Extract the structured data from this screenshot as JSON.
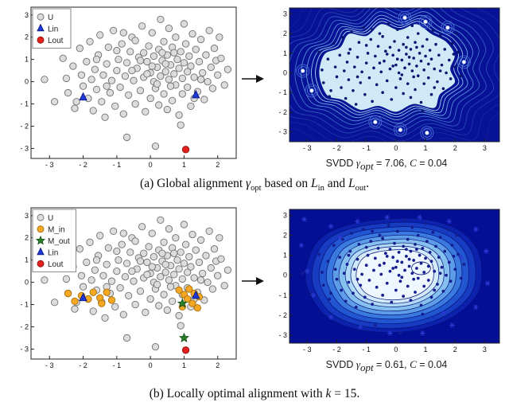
{
  "captions": {
    "svdd_a": {
      "prefix": "SVDD ",
      "gamma": "γ",
      "gsub": "opt",
      "mid": " = 7.06, ",
      "cvar": "C",
      "suffix": " = 0.04"
    },
    "svdd_b": {
      "prefix": "SVDD ",
      "gamma": "γ",
      "gsub": "opt",
      "mid": " = 0.61, ",
      "cvar": "C",
      "suffix": " = 0.04"
    },
    "a": {
      "p1": "(a) Global alignment ",
      "gamma": "γ",
      "gsub": "opt",
      "p2": " based on ",
      "l1": "L",
      "l1s": "in",
      "p3": " and ",
      "l2": "L",
      "l2s": "out",
      "p4": "."
    },
    "b": {
      "p1": "(b) Locally optimal alignment with ",
      "kvar": "k",
      "p2": " = 15."
    }
  },
  "datasets": {
    "U": [
      [
        -3.15,
        0.1
      ],
      [
        -2.85,
        -0.9
      ],
      [
        -2.6,
        1.05
      ],
      [
        -2.5,
        0.15
      ],
      [
        -2.45,
        -0.5
      ],
      [
        -2.3,
        0.7
      ],
      [
        -2.25,
        -1.2
      ],
      [
        -2.1,
        1.5
      ],
      [
        -2.05,
        0.3
      ],
      [
        -2.0,
        -0.2
      ],
      [
        -1.9,
        0.9
      ],
      [
        -1.85,
        -0.75
      ],
      [
        -1.8,
        1.8
      ],
      [
        -1.75,
        0.1
      ],
      [
        -1.7,
        -1.3
      ],
      [
        -1.65,
        0.55
      ],
      [
        -1.6,
        -0.35
      ],
      [
        -1.55,
        1.2
      ],
      [
        -1.5,
        2.1
      ],
      [
        -1.45,
        -0.9
      ],
      [
        -1.4,
        0.3
      ],
      [
        -1.35,
        -1.6
      ],
      [
        -1.3,
        0.8
      ],
      [
        -1.25,
        1.55
      ],
      [
        -1.2,
        -0.5
      ],
      [
        -1.15,
        0.05
      ],
      [
        -1.1,
        2.3
      ],
      [
        -1.05,
        -1.1
      ],
      [
        -1.0,
        0.5
      ],
      [
        -0.95,
        1.0
      ],
      [
        -0.9,
        -0.25
      ],
      [
        -0.85,
        1.7
      ],
      [
        -0.8,
        -1.45
      ],
      [
        -0.75,
        0.25
      ],
      [
        -0.7,
        0.85
      ],
      [
        -0.7,
        -2.5
      ],
      [
        -0.65,
        -0.6
      ],
      [
        -0.6,
        1.35
      ],
      [
        -0.55,
        2.0
      ],
      [
        -0.5,
        0.05
      ],
      [
        -0.45,
        -1.0
      ],
      [
        -0.4,
        0.6
      ],
      [
        -0.35,
        1.1
      ],
      [
        -0.3,
        -0.4
      ],
      [
        -0.25,
        2.5
      ],
      [
        -0.2,
        0.2
      ],
      [
        -0.15,
        -1.35
      ],
      [
        -0.1,
        0.9
      ],
      [
        -0.05,
        1.6
      ],
      [
        0.0,
        0.4
      ],
      [
        0.0,
        -0.75
      ],
      [
        0.05,
        2.2
      ],
      [
        0.1,
        0.0
      ],
      [
        0.1,
        1.15
      ],
      [
        0.15,
        -2.9
      ],
      [
        0.15,
        -0.3
      ],
      [
        0.2,
        0.65
      ],
      [
        0.25,
        1.45
      ],
      [
        0.25,
        -1.05
      ],
      [
        0.3,
        0.25
      ],
      [
        0.3,
        2.8
      ],
      [
        0.35,
        0.95
      ],
      [
        0.4,
        -0.55
      ],
      [
        0.4,
        1.8
      ],
      [
        0.45,
        0.45
      ],
      [
        0.5,
        -1.25
      ],
      [
        0.5,
        1.2
      ],
      [
        0.55,
        0.1
      ],
      [
        0.55,
        2.4
      ],
      [
        0.6,
        0.75
      ],
      [
        0.65,
        -0.85
      ],
      [
        0.65,
        1.55
      ],
      [
        0.7,
        0.35
      ],
      [
        0.75,
        -0.15
      ],
      [
        0.75,
        2.0
      ],
      [
        0.8,
        1.0
      ],
      [
        0.85,
        -1.5
      ],
      [
        0.85,
        0.6
      ],
      [
        0.9,
        1.35
      ],
      [
        0.95,
        0.15
      ],
      [
        0.95,
        -0.55
      ],
      [
        1.0,
        2.6
      ],
      [
        1.0,
        0.85
      ],
      [
        1.05,
        1.7
      ],
      [
        1.1,
        -0.25
      ],
      [
        1.1,
        0.45
      ],
      [
        1.15,
        1.15
      ],
      [
        1.2,
        -1.1
      ],
      [
        1.2,
        0.7
      ],
      [
        1.25,
        2.15
      ],
      [
        1.3,
        0.2
      ],
      [
        1.35,
        1.45
      ],
      [
        1.4,
        -0.45
      ],
      [
        1.45,
        0.9
      ],
      [
        1.5,
        1.9
      ],
      [
        1.55,
        0.4
      ],
      [
        1.6,
        -0.8
      ],
      [
        1.65,
        1.2
      ],
      [
        1.7,
        0.0
      ],
      [
        1.75,
        2.3
      ],
      [
        1.8,
        0.65
      ],
      [
        1.85,
        -0.3
      ],
      [
        1.9,
        1.5
      ],
      [
        1.95,
        0.95
      ],
      [
        2.0,
        0.3
      ],
      [
        2.1,
        1.05
      ],
      [
        2.2,
        -0.15
      ],
      [
        2.3,
        0.55
      ],
      [
        -0.1,
        0.35
      ],
      [
        0.2,
        -0.1
      ],
      [
        0.45,
        0.8
      ],
      [
        -0.3,
        0.95
      ],
      [
        0.6,
        -0.2
      ],
      [
        -0.55,
        0.5
      ],
      [
        0.05,
        0.7
      ],
      [
        -0.2,
        1.3
      ],
      [
        0.35,
        1.3
      ],
      [
        0.7,
        1.3
      ],
      [
        -0.45,
        1.85
      ],
      [
        -1.0,
        1.4
      ],
      [
        -0.8,
        2.2
      ],
      [
        1.3,
        -0.75
      ],
      [
        1.5,
        0.1
      ],
      [
        -1.6,
        1.0
      ],
      [
        -2.2,
        -0.9
      ],
      [
        -1.3,
        -0.2
      ],
      [
        2.05,
        2.0
      ],
      [
        0.9,
        -1.95
      ]
    ],
    "Lin": [
      [
        -2.0,
        -0.7
      ],
      [
        1.35,
        -0.6
      ]
    ],
    "Lout": [
      [
        1.05,
        -3.05
      ]
    ],
    "M_in": [
      [
        -2.45,
        -0.5
      ],
      [
        -2.25,
        -0.85
      ],
      [
        -2.05,
        -0.6
      ],
      [
        -1.85,
        -0.75
      ],
      [
        -1.7,
        -0.45
      ],
      [
        -1.5,
        -0.7
      ],
      [
        -1.3,
        -0.45
      ],
      [
        -1.15,
        -0.8
      ],
      [
        -1.45,
        -0.95
      ],
      [
        0.85,
        -0.35
      ],
      [
        1.0,
        -0.55
      ],
      [
        1.15,
        -0.3
      ],
      [
        1.3,
        -0.5
      ],
      [
        1.45,
        -0.65
      ],
      [
        1.1,
        -0.75
      ],
      [
        1.25,
        -0.95
      ],
      [
        0.95,
        -1.1
      ],
      [
        1.4,
        -1.15
      ]
    ],
    "M_out": [
      [
        0.95,
        -0.95
      ],
      [
        1.0,
        -2.5
      ]
    ],
    "isolated_a": [
      [
        -3.15,
        0.1
      ],
      [
        -2.85,
        -0.9
      ],
      [
        0.3,
        2.8
      ],
      [
        1.0,
        2.6
      ],
      [
        1.75,
        2.3
      ],
      [
        2.3,
        0.55
      ],
      [
        0.15,
        -2.9
      ],
      [
        -0.7,
        -2.5
      ],
      [
        1.05,
        -3.05
      ]
    ],
    "asterisks_b": [
      [
        -3.1,
        2.8
      ],
      [
        -2.2,
        2.45
      ],
      [
        -1.3,
        2.7
      ],
      [
        -0.3,
        2.9
      ],
      [
        0.8,
        2.9
      ],
      [
        1.8,
        2.7
      ],
      [
        2.7,
        2.3
      ],
      [
        3.05,
        1.2
      ],
      [
        -3.2,
        1.5
      ],
      [
        -3.0,
        0.2
      ],
      [
        -2.8,
        -1.0
      ],
      [
        -2.2,
        -2.1
      ],
      [
        -1.2,
        -2.6
      ],
      [
        -0.2,
        -2.9
      ],
      [
        0.9,
        -2.9
      ],
      [
        1.9,
        -2.5
      ],
      [
        2.7,
        -1.6
      ],
      [
        3.1,
        -0.4
      ],
      [
        -1.9,
        1.9
      ],
      [
        2.2,
        0.9
      ],
      [
        1.6,
        -1.9
      ]
    ]
  },
  "chart_data": [
    {
      "id": "scatter_a",
      "type": "scatter",
      "xlim": [
        -3.55,
        2.55
      ],
      "ylim": [
        -3.45,
        3.35
      ],
      "xticks": [
        -3,
        -2,
        -1,
        0,
        1,
        2
      ],
      "xtick_labels": [
        "- 3",
        "- 2",
        "- 1",
        "0",
        "1",
        "2"
      ],
      "yticks": [
        -3,
        -2,
        -1,
        0,
        1,
        2,
        3
      ],
      "ytick_labels": [
        "- 3",
        "- 2",
        "- 1",
        "0",
        "1",
        "2",
        "3"
      ],
      "legend": true,
      "legend_position": "top-left",
      "series": [
        {
          "name": "U",
          "marker": "circle",
          "fill": "#dcdcdc",
          "edge": "#6f6f6f",
          "size": 4.2,
          "data": "U"
        },
        {
          "name": "Lin",
          "marker": "triangle",
          "fill": "#2038d8",
          "edge": "#0a1a80",
          "size": 4.5,
          "data": "Lin"
        },
        {
          "name": "Lout",
          "marker": "circle",
          "fill": "#e3201b",
          "edge": "#8c1410",
          "size": 4.2,
          "data": "Lout"
        }
      ]
    },
    {
      "id": "contour_a",
      "type": "contour",
      "xlim": [
        -3.6,
        3.5
      ],
      "ylim": [
        -3.5,
        3.3
      ],
      "xticks": [
        -3,
        -2,
        -1,
        0,
        1,
        2,
        3
      ],
      "xtick_labels": [
        "- 3",
        "- 2",
        "- 1",
        "0",
        "1",
        "2",
        "3"
      ],
      "yticks": [
        -3,
        -2,
        -1,
        0,
        1,
        2,
        3
      ],
      "ytick_labels": [
        "- 3",
        "- 2",
        "- 1",
        "0",
        "1",
        "2",
        "3"
      ],
      "bg": "#071296",
      "blob": {
        "center": [
          -0.3,
          0.15
        ],
        "fill": "#cfeaf6",
        "stroke": "#0a1a90",
        "points": [
          [
            -2.6,
            0.2
          ],
          [
            -2.4,
            1.0
          ],
          [
            -1.9,
            1.3
          ],
          [
            -1.6,
            2.0
          ],
          [
            -1.0,
            1.9
          ],
          [
            -0.5,
            2.5
          ],
          [
            0.1,
            2.2
          ],
          [
            0.7,
            2.5
          ],
          [
            1.2,
            2.0
          ],
          [
            1.7,
            1.6
          ],
          [
            2.0,
            0.9
          ],
          [
            1.85,
            0.2
          ],
          [
            2.0,
            -0.5
          ],
          [
            1.5,
            -1.1
          ],
          [
            1.3,
            -1.8
          ],
          [
            0.6,
            -1.6
          ],
          [
            0.0,
            -2.0
          ],
          [
            -0.6,
            -1.7
          ],
          [
            -1.2,
            -1.9
          ],
          [
            -1.8,
            -1.4
          ],
          [
            -2.3,
            -1.2
          ],
          [
            -2.55,
            -0.5
          ]
        ]
      },
      "rings": [
        {
          "f": 1.05,
          "stroke": "#a8d6f2"
        },
        {
          "f": 1.11,
          "stroke": "#8cc0ec"
        },
        {
          "f": 1.18,
          "stroke": "#6fa6e2"
        },
        {
          "f": 1.26,
          "stroke": "#578cd8"
        },
        {
          "f": 1.35,
          "stroke": "#4373cc"
        },
        {
          "f": 1.45,
          "stroke": "#335cc0"
        },
        {
          "f": 1.56,
          "stroke": "#2747b2"
        },
        {
          "f": 1.68,
          "stroke": "#1d37a6"
        },
        {
          "f": 1.82,
          "stroke": "#152c9e"
        },
        {
          "f": 1.98,
          "stroke": "#0f2398"
        }
      ],
      "dots": {
        "data": "U",
        "color": "#0a1670",
        "r": 1.8
      },
      "isolated": {
        "data": "isolated_a",
        "ring": "#4a6fd8"
      }
    },
    {
      "id": "scatter_b",
      "type": "scatter",
      "xlim": [
        -3.55,
        2.55
      ],
      "ylim": [
        -3.45,
        3.35
      ],
      "xticks": [
        -3,
        -2,
        -1,
        0,
        1,
        2
      ],
      "xtick_labels": [
        "- 3",
        "- 2",
        "- 1",
        "0",
        "1",
        "2"
      ],
      "yticks": [
        -3,
        -2,
        -1,
        0,
        1,
        2,
        3
      ],
      "ytick_labels": [
        "- 3",
        "- 2",
        "- 1",
        "0",
        "1",
        "2",
        "3"
      ],
      "legend": true,
      "legend_position": "top-left",
      "series": [
        {
          "name": "U",
          "marker": "circle",
          "fill": "#dcdcdc",
          "edge": "#6f6f6f",
          "size": 4.2,
          "data": "U"
        },
        {
          "name": "M_in",
          "marker": "circle",
          "fill": "#f7a823",
          "edge": "#a8700f",
          "size": 4.2,
          "data": "M_in"
        },
        {
          "name": "M_out",
          "marker": "star",
          "fill": "#2c7e2c",
          "edge": "#114f11",
          "size": 3.5,
          "data": "M_out"
        },
        {
          "name": "Lin",
          "marker": "triangle",
          "fill": "#2038d8",
          "edge": "#0a1a80",
          "size": 4.5,
          "data": "Lin"
        },
        {
          "name": "Lout",
          "marker": "circle",
          "fill": "#e3201b",
          "edge": "#8c1410",
          "size": 4.2,
          "data": "Lout"
        }
      ]
    },
    {
      "id": "contour_b",
      "type": "contour",
      "xlim": [
        -3.6,
        3.5
      ],
      "ylim": [
        -3.4,
        3.3
      ],
      "xticks": [
        -3,
        -2,
        -1,
        0,
        1,
        2,
        3
      ],
      "xtick_labels": [
        "- 3",
        "- 2",
        "- 1",
        "0",
        "1",
        "2",
        "3"
      ],
      "yticks": [
        -3,
        -2,
        -1,
        0,
        1,
        2,
        3
      ],
      "ytick_labels": [
        "- 3",
        "- 2",
        "- 1",
        "0",
        "1",
        "2",
        "3"
      ],
      "bg": "#050f96",
      "level_stroke": "#041078",
      "level_shape": {
        "center": [
          0.0,
          0.05
        ],
        "points": [
          [
            -3.0,
            0.6
          ],
          [
            -2.7,
            1.6
          ],
          [
            -2.2,
            2.2
          ],
          [
            -1.4,
            2.6
          ],
          [
            -0.4,
            2.8
          ],
          [
            0.6,
            2.85
          ],
          [
            1.6,
            2.6
          ],
          [
            2.3,
            2.1
          ],
          [
            2.75,
            1.3
          ],
          [
            2.9,
            0.3
          ],
          [
            2.8,
            -0.8
          ],
          [
            2.3,
            -1.7
          ],
          [
            1.5,
            -2.4
          ],
          [
            0.5,
            -2.8
          ],
          [
            -0.6,
            -2.85
          ],
          [
            -1.6,
            -2.6
          ],
          [
            -2.4,
            -2.0
          ],
          [
            -2.85,
            -1.1
          ],
          [
            -3.05,
            -0.3
          ]
        ]
      },
      "levels": [
        {
          "f": 1.0,
          "fill": "#0c22ad"
        },
        {
          "f": 0.93,
          "fill": "#173bc1"
        },
        {
          "f": 0.85,
          "fill": "#2256d0"
        },
        {
          "f": 0.77,
          "fill": "#3a7ade"
        },
        {
          "f": 0.7,
          "fill": "#5d9de8"
        },
        {
          "f": 0.63,
          "fill": "#86c0ef"
        },
        {
          "f": 0.56,
          "fill": "#afd9f5"
        },
        {
          "f": 0.5,
          "fill": "#d2eafa"
        },
        {
          "f": 0.44,
          "fill": "#eef7fd"
        }
      ],
      "inner_rings": [
        {
          "c": [
            0.85,
            0.35
          ],
          "r": 0.32
        }
      ],
      "dots": {
        "data": "U",
        "color": "#161e8f",
        "r": 1.9
      },
      "asterisks": {
        "data": "asterisks_b",
        "color": "#2a3bd4"
      }
    }
  ]
}
